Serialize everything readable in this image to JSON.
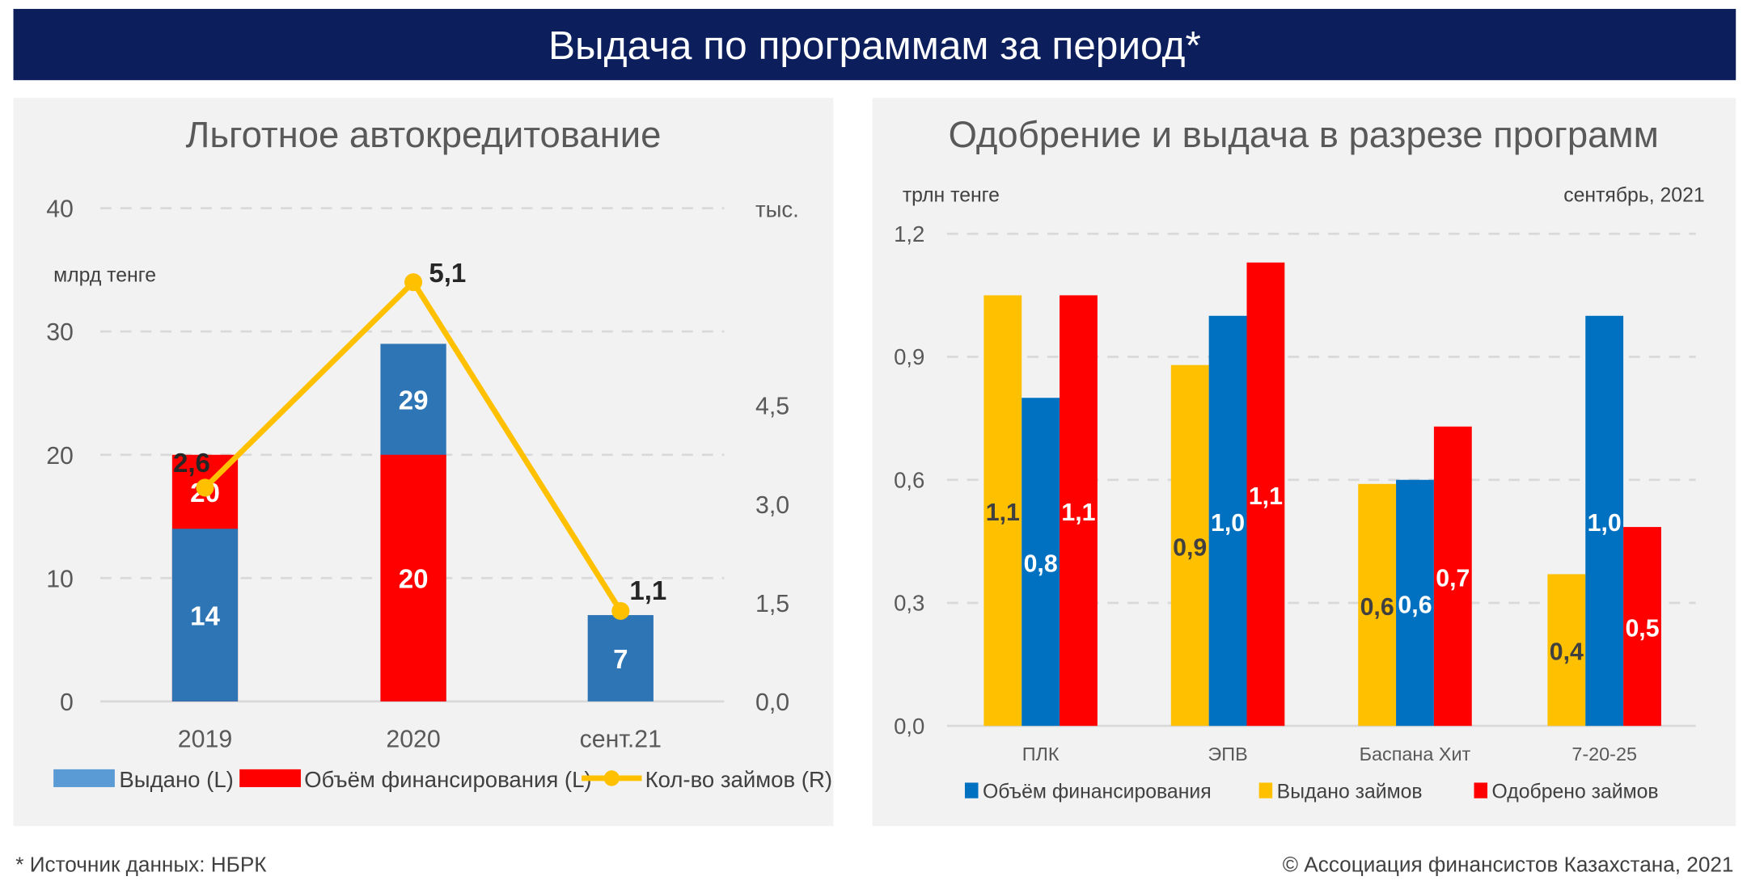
{
  "header": {
    "title": "Выдача по программам за период*"
  },
  "footer": {
    "source": "* Источник данных: НБРК",
    "copyright": "© Ассоциация финансистов Казахстана, 2021"
  },
  "colors": {
    "header_bg": "#0c1f5c",
    "panel_bg": "#f2f2f2",
    "blue_left": "#2e75b6",
    "blue_right": "#0070c0",
    "red": "#ff0000",
    "yellow": "#ffc000"
  },
  "chart_data": [
    {
      "type": "bar+line",
      "title": "Льготное автокредитование",
      "ylabel": "млрд тенге",
      "y2label": "тыс.",
      "ylim": [
        0,
        40
      ],
      "y2lim": [
        0,
        6
      ],
      "yticks": [
        "0",
        "10",
        "20",
        "30",
        "40"
      ],
      "y2ticks": [
        "0,0",
        "1,5",
        "3,0",
        "4,5"
      ],
      "categories": [
        "2019",
        "2020",
        "сент.21"
      ],
      "grid": true,
      "legend_position": "bottom",
      "series": [
        {
          "name": "Выдано (L)",
          "kind": "bar",
          "values": [
            14,
            29,
            7
          ],
          "labels": [
            "14",
            "29",
            "7"
          ]
        },
        {
          "name": "Объём финансирования (L)",
          "kind": "bar",
          "values": [
            20,
            20,
            null
          ],
          "labels": [
            "20",
            "20",
            ""
          ]
        },
        {
          "name": "Кол-во займов (R)",
          "kind": "line",
          "axis": "right",
          "values": [
            2.6,
            5.1,
            1.1
          ],
          "labels": [
            "2,6",
            "5,1",
            "1,1"
          ]
        }
      ]
    },
    {
      "type": "bar",
      "title": "Одобрение и выдача в разрезе программ",
      "ylabel": "трлн тенге",
      "subtitle": "сентябрь, 2021",
      "ylim": [
        0,
        1.2
      ],
      "yticks": [
        "0,0",
        "0,3",
        "0,6",
        "0,9",
        "1,2"
      ],
      "categories": [
        "ПЛК",
        "ЭПВ",
        "Баспана Хит",
        "7-20-25"
      ],
      "grid": true,
      "legend_position": "bottom",
      "legend_order": [
        "Объём финансирования",
        "Выдано займов",
        "Одобрено займов"
      ],
      "series": [
        {
          "name": "Выдано займов",
          "values": [
            1.05,
            0.88,
            0.59,
            0.37
          ],
          "labels": [
            "1,1",
            "0,9",
            "0,6",
            "0,4"
          ]
        },
        {
          "name": "Объём финансирования",
          "values": [
            0.8,
            1.0,
            0.6,
            1.0
          ],
          "labels": [
            "0,8",
            "1,0",
            "0,6",
            "1,0"
          ]
        },
        {
          "name": "Одобрено займов",
          "values": [
            1.05,
            1.13,
            0.73,
            0.485
          ],
          "labels": [
            "1,1",
            "1,1",
            "0,7",
            "0,5"
          ]
        }
      ]
    }
  ]
}
